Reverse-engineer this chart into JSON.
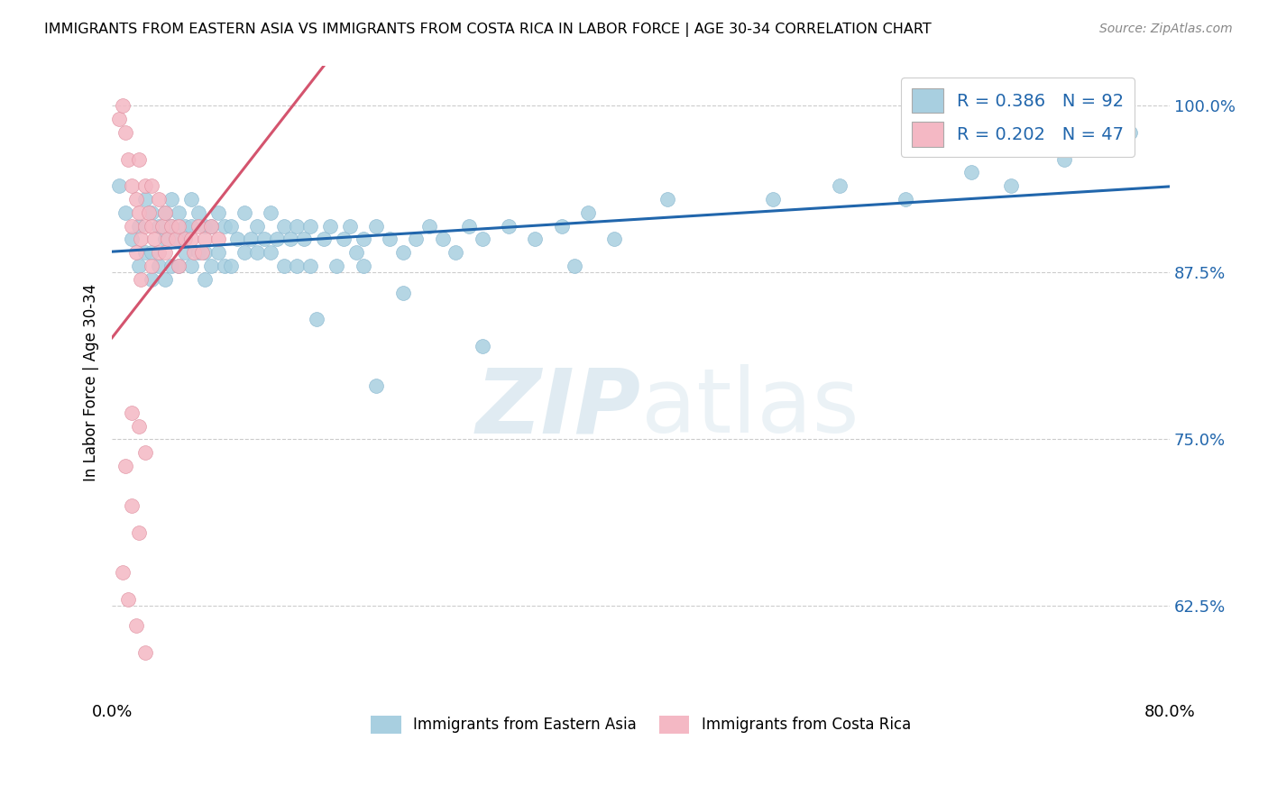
{
  "title": "IMMIGRANTS FROM EASTERN ASIA VS IMMIGRANTS FROM COSTA RICA IN LABOR FORCE | AGE 30-34 CORRELATION CHART",
  "source": "Source: ZipAtlas.com",
  "ylabel": "In Labor Force | Age 30-34",
  "xlim": [
    0.0,
    0.8
  ],
  "ylim": [
    0.555,
    1.03
  ],
  "x_ticks": [
    0.0,
    0.1,
    0.2,
    0.3,
    0.4,
    0.5,
    0.6,
    0.7,
    0.8
  ],
  "x_tick_labels": [
    "0.0%",
    "",
    "",
    "",
    "",
    "",
    "",
    "",
    "80.0%"
  ],
  "y_ticks": [
    0.625,
    0.75,
    0.875,
    1.0
  ],
  "y_tick_labels": [
    "62.5%",
    "75.0%",
    "87.5%",
    "100.0%"
  ],
  "r_blue": 0.386,
  "n_blue": 92,
  "r_pink": 0.202,
  "n_pink": 47,
  "blue_color": "#a8cfe0",
  "pink_color": "#f4b8c4",
  "blue_line_color": "#2166ac",
  "pink_line_color": "#d4546e",
  "grid_color": "#cccccc",
  "legend_label_blue": "Immigrants from Eastern Asia",
  "legend_label_pink": "Immigrants from Costa Rica",
  "blue_scatter_x": [
    0.005,
    0.01,
    0.015,
    0.02,
    0.02,
    0.025,
    0.025,
    0.03,
    0.03,
    0.03,
    0.035,
    0.035,
    0.04,
    0.04,
    0.04,
    0.045,
    0.045,
    0.045,
    0.05,
    0.05,
    0.05,
    0.055,
    0.055,
    0.06,
    0.06,
    0.06,
    0.065,
    0.065,
    0.07,
    0.07,
    0.07,
    0.075,
    0.075,
    0.08,
    0.08,
    0.085,
    0.085,
    0.09,
    0.09,
    0.095,
    0.1,
    0.1,
    0.105,
    0.11,
    0.11,
    0.115,
    0.12,
    0.12,
    0.125,
    0.13,
    0.13,
    0.135,
    0.14,
    0.14,
    0.145,
    0.15,
    0.15,
    0.16,
    0.165,
    0.17,
    0.175,
    0.18,
    0.185,
    0.19,
    0.2,
    0.21,
    0.22,
    0.23,
    0.24,
    0.25,
    0.26,
    0.27,
    0.28,
    0.3,
    0.32,
    0.34,
    0.36,
    0.38,
    0.22,
    0.19,
    0.155,
    0.28,
    0.42,
    0.5,
    0.55,
    0.6,
    0.65,
    0.68,
    0.72,
    0.77,
    0.2,
    0.35
  ],
  "blue_scatter_y": [
    0.94,
    0.92,
    0.9,
    0.91,
    0.88,
    0.93,
    0.89,
    0.92,
    0.89,
    0.87,
    0.91,
    0.88,
    0.92,
    0.9,
    0.87,
    0.93,
    0.91,
    0.88,
    0.92,
    0.9,
    0.88,
    0.91,
    0.89,
    0.93,
    0.91,
    0.88,
    0.92,
    0.89,
    0.91,
    0.89,
    0.87,
    0.91,
    0.88,
    0.92,
    0.89,
    0.91,
    0.88,
    0.91,
    0.88,
    0.9,
    0.92,
    0.89,
    0.9,
    0.91,
    0.89,
    0.9,
    0.92,
    0.89,
    0.9,
    0.91,
    0.88,
    0.9,
    0.91,
    0.88,
    0.9,
    0.91,
    0.88,
    0.9,
    0.91,
    0.88,
    0.9,
    0.91,
    0.89,
    0.9,
    0.91,
    0.9,
    0.89,
    0.9,
    0.91,
    0.9,
    0.89,
    0.91,
    0.9,
    0.91,
    0.9,
    0.91,
    0.92,
    0.9,
    0.86,
    0.88,
    0.84,
    0.82,
    0.93,
    0.93,
    0.94,
    0.93,
    0.95,
    0.94,
    0.96,
    0.98,
    0.79,
    0.88
  ],
  "pink_scatter_x": [
    0.005,
    0.008,
    0.01,
    0.012,
    0.015,
    0.015,
    0.018,
    0.018,
    0.02,
    0.02,
    0.022,
    0.022,
    0.025,
    0.025,
    0.028,
    0.03,
    0.03,
    0.03,
    0.032,
    0.035,
    0.035,
    0.038,
    0.04,
    0.04,
    0.042,
    0.045,
    0.048,
    0.05,
    0.05,
    0.055,
    0.06,
    0.062,
    0.065,
    0.068,
    0.07,
    0.075,
    0.08,
    0.015,
    0.02,
    0.025,
    0.01,
    0.015,
    0.02,
    0.008,
    0.012,
    0.018,
    0.025
  ],
  "pink_scatter_y": [
    0.99,
    1.0,
    0.98,
    0.96,
    0.94,
    0.91,
    0.93,
    0.89,
    0.96,
    0.92,
    0.9,
    0.87,
    0.94,
    0.91,
    0.92,
    0.94,
    0.91,
    0.88,
    0.9,
    0.93,
    0.89,
    0.91,
    0.92,
    0.89,
    0.9,
    0.91,
    0.9,
    0.91,
    0.88,
    0.9,
    0.9,
    0.89,
    0.91,
    0.89,
    0.9,
    0.91,
    0.9,
    0.77,
    0.76,
    0.74,
    0.73,
    0.7,
    0.68,
    0.65,
    0.63,
    0.61,
    0.59
  ]
}
